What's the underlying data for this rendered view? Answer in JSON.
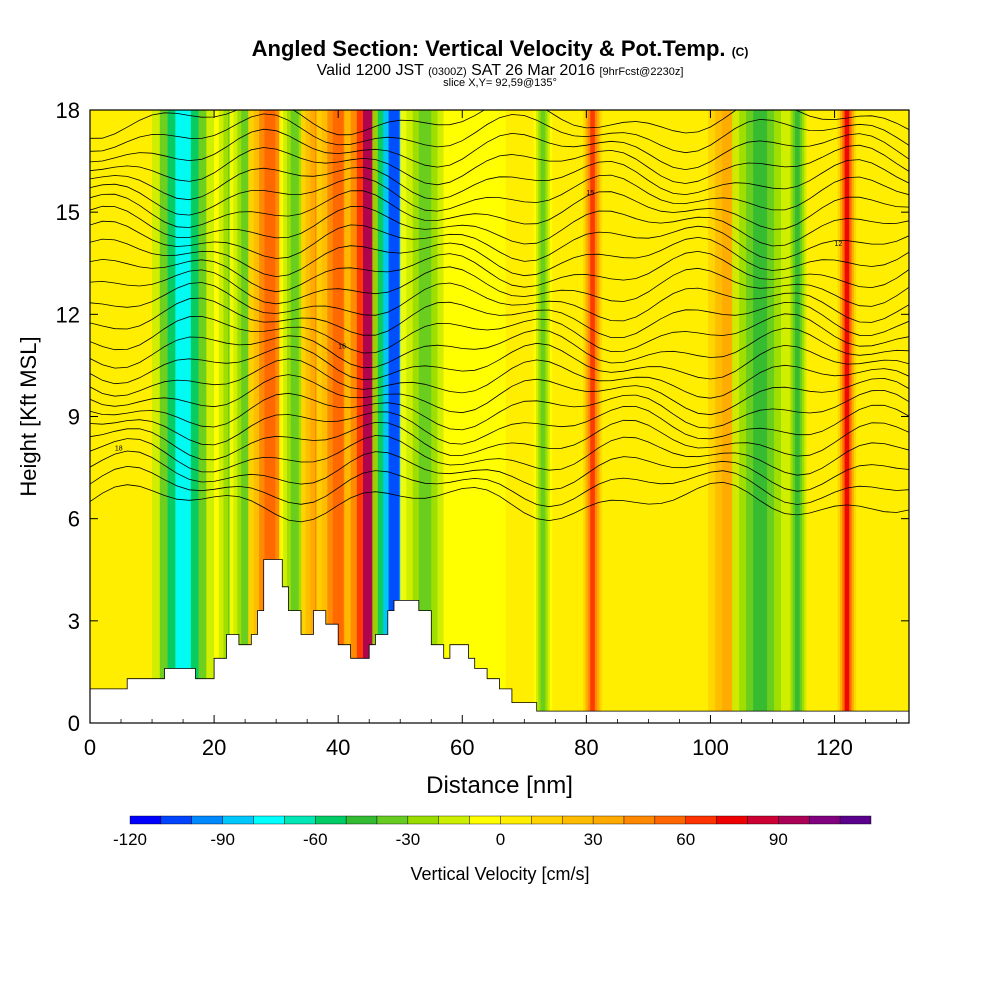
{
  "title": {
    "main": "Angled Section: Vertical Velocity & Pot.Temp.",
    "main_unit": "(C)",
    "valid_prefix": "Valid 1200 JST",
    "valid_utc": "(0300Z)",
    "valid_date": "SAT 26 Mar 2016",
    "forecast": "[9hrFcst@2230z]",
    "slice": "slice X,Y= 92,59@135°"
  },
  "chart_data": {
    "type": "heatmap",
    "xlabel": "Distance [nm]",
    "ylabel": "Height [Kft MSL]",
    "xlim": [
      0,
      132
    ],
    "ylim": [
      0,
      18
    ],
    "x_ticks": [
      0,
      20,
      40,
      60,
      80,
      100,
      120
    ],
    "y_ticks": [
      0,
      3,
      6,
      9,
      12,
      15,
      18
    ],
    "x_tick_labels": [
      "0",
      "20",
      "40",
      "60",
      "80",
      "100",
      "120"
    ],
    "y_tick_labels": [
      "0",
      "3",
      "6",
      "9",
      "12",
      "15",
      "18"
    ],
    "colorbar": {
      "label": "Vertical Velocity [cm/s]",
      "levels": [
        -120,
        -110,
        -100,
        -90,
        -80,
        -70,
        -60,
        -50,
        -40,
        -30,
        -20,
        -10,
        0,
        10,
        20,
        30,
        40,
        50,
        60,
        70,
        80,
        90,
        100,
        110
      ],
      "tick_values": [
        -120,
        -90,
        -60,
        -30,
        0,
        30,
        60,
        90
      ],
      "tick_labels": [
        "-120",
        "-90",
        "-60",
        "-30",
        "0",
        "30",
        "60",
        "90"
      ],
      "colors": [
        "#0000ff",
        "#0044ff",
        "#0088ff",
        "#00c8ff",
        "#00ffff",
        "#00e6b4",
        "#00cc66",
        "#33bb33",
        "#66cc22",
        "#99dd00",
        "#ccee00",
        "#ffff00",
        "#ffee00",
        "#ffd200",
        "#ffbb00",
        "#ffaa00",
        "#ff8800",
        "#ff6600",
        "#ff3300",
        "#ee0000",
        "#cc0033",
        "#aa0055",
        "#800080",
        "#5a008c"
      ]
    },
    "vertical_velocity_bands": [
      {
        "x": 15,
        "w": 5.0,
        "value": -75
      },
      {
        "x": 23,
        "w": 3.0,
        "value": -35
      },
      {
        "x": 25,
        "w": 2.5,
        "value": -40
      },
      {
        "x": 29,
        "w": 3.5,
        "value": 55
      },
      {
        "x": 33,
        "w": 2.5,
        "value": -35
      },
      {
        "x": 37,
        "w": 3.0,
        "value": 40
      },
      {
        "x": 40,
        "w": 3.5,
        "value": 55
      },
      {
        "x": 45,
        "w": 4.0,
        "value": 90
      },
      {
        "x": 49,
        "w": 3.5,
        "value": -110
      },
      {
        "x": 54,
        "w": 4.0,
        "value": -35
      },
      {
        "x": 62,
        "w": 5.0,
        "value": -10
      },
      {
        "x": 73,
        "w": 1.5,
        "value": -40
      },
      {
        "x": 81,
        "w": 1.5,
        "value": 65
      },
      {
        "x": 103,
        "w": 4.5,
        "value": 30
      },
      {
        "x": 108,
        "w": 4.5,
        "value": -45
      },
      {
        "x": 114,
        "w": 1.5,
        "value": -50
      },
      {
        "x": 122,
        "w": 1.5,
        "value": 70
      }
    ],
    "terrain": [
      [
        0,
        1.0
      ],
      [
        6,
        1.0
      ],
      [
        6,
        1.3
      ],
      [
        12,
        1.3
      ],
      [
        12,
        1.6
      ],
      [
        17,
        1.6
      ],
      [
        17,
        1.3
      ],
      [
        20,
        1.3
      ],
      [
        20,
        1.9
      ],
      [
        22,
        1.9
      ],
      [
        22,
        2.6
      ],
      [
        24,
        2.6
      ],
      [
        24,
        2.3
      ],
      [
        26,
        2.3
      ],
      [
        26,
        2.6
      ],
      [
        27,
        2.6
      ],
      [
        27,
        3.3
      ],
      [
        28,
        3.3
      ],
      [
        28,
        4.8
      ],
      [
        31,
        4.8
      ],
      [
        31,
        4.0
      ],
      [
        32,
        4.0
      ],
      [
        32,
        3.3
      ],
      [
        34,
        3.3
      ],
      [
        34,
        2.6
      ],
      [
        36,
        2.6
      ],
      [
        36,
        3.3
      ],
      [
        38,
        3.3
      ],
      [
        38,
        2.9
      ],
      [
        40,
        2.9
      ],
      [
        40,
        2.3
      ],
      [
        42,
        2.3
      ],
      [
        42,
        1.9
      ],
      [
        45,
        1.9
      ],
      [
        45,
        2.3
      ],
      [
        46,
        2.3
      ],
      [
        46,
        2.6
      ],
      [
        48,
        2.6
      ],
      [
        48,
        3.3
      ],
      [
        49,
        3.3
      ],
      [
        49,
        3.6
      ],
      [
        53,
        3.6
      ],
      [
        53,
        3.3
      ],
      [
        55,
        3.3
      ],
      [
        55,
        2.3
      ],
      [
        57,
        2.3
      ],
      [
        57,
        1.9
      ],
      [
        58,
        1.9
      ],
      [
        58,
        2.3
      ],
      [
        61,
        2.3
      ],
      [
        61,
        1.9
      ],
      [
        62,
        1.9
      ],
      [
        62,
        1.6
      ],
      [
        64,
        1.6
      ],
      [
        64,
        1.3
      ],
      [
        66,
        1.3
      ],
      [
        66,
        1.0
      ],
      [
        68,
        1.0
      ],
      [
        68,
        0.6
      ],
      [
        72,
        0.6
      ],
      [
        72,
        0.35
      ],
      [
        132,
        0.35
      ]
    ],
    "isentrope_labels": [
      "18",
      "16",
      "15",
      "12"
    ]
  }
}
